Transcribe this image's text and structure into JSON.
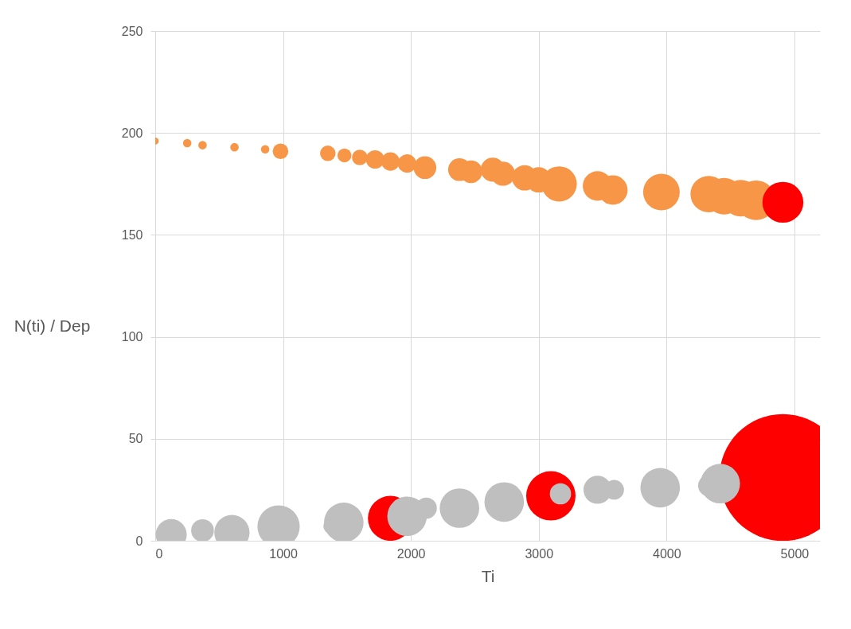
{
  "chart_data": {
    "type": "bubble",
    "xlabel": "Ti",
    "ylabel": "N(ti)  / Dep",
    "xlim": [
      0,
      5200
    ],
    "xticks": [
      0,
      1000,
      2000,
      3000,
      4000,
      5000
    ],
    "ylim": [
      0,
      250
    ],
    "yticks": [
      0,
      50,
      100,
      150,
      200,
      250
    ],
    "grid": true,
    "series": [
      {
        "color": "#f79646",
        "x": [
          0,
          250,
          370,
          620,
          860,
          980,
          1350,
          1480,
          1600,
          1720,
          1840,
          1970,
          2110,
          2380,
          2470,
          2640,
          2720,
          2890,
          3000,
          3160,
          3460,
          3580,
          3960,
          4330,
          4450,
          4580,
          4700
        ],
        "values": [
          196,
          195,
          194,
          193,
          192,
          191,
          190,
          189,
          188,
          187,
          186,
          185,
          183,
          182,
          181,
          182,
          180,
          178,
          177,
          175,
          174,
          172,
          171,
          170,
          169,
          168,
          167
        ],
        "sizes": [
          0.003,
          0.0044,
          0.0044,
          0.0044,
          0.0044,
          0.015,
          0.015,
          0.012,
          0.015,
          0.021,
          0.021,
          0.021,
          0.032,
          0.032,
          0.032,
          0.036,
          0.036,
          0.04,
          0.04,
          0.077,
          0.054,
          0.054,
          0.083,
          0.083,
          0.083,
          0.083,
          0.097
        ]
      },
      {
        "color": "#ff0000",
        "x": [
          4910,
          1840,
          3095,
          4910
        ],
        "values": [
          166,
          11,
          22,
          31
        ],
        "sizes": [
          0.104,
          0.126,
          0.151,
          1
        ]
      },
      {
        "color": "#bfbfbf",
        "x": [
          125,
          370,
          600,
          965,
          1475,
          1370,
          1970,
          2120,
          2380,
          2730,
          3170,
          3460,
          3590,
          3950,
          4330,
          4420
        ],
        "values": [
          3,
          5,
          4,
          7,
          9,
          7,
          12,
          16,
          16,
          19,
          23,
          25,
          25,
          26,
          27,
          28
        ],
        "sizes": [
          0.06,
          0.032,
          0.077,
          0.111,
          0.097,
          0.012,
          0.097,
          0.028,
          0.097,
          0.097,
          0.028,
          0.049,
          0.024,
          0.097,
          0.028,
          0.097
        ]
      }
    ]
  }
}
